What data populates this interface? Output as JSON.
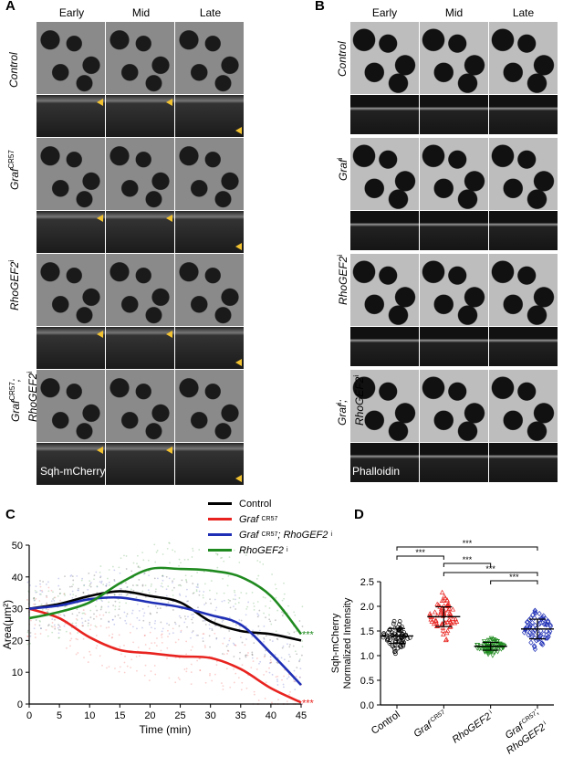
{
  "panels": {
    "A": {
      "letter": "A",
      "columns": [
        "Early",
        "Mid",
        "Late"
      ],
      "rows": [
        {
          "name": "Control",
          "sup": "",
          "italic": false
        },
        {
          "name": "Graf",
          "sup": "CR57",
          "italic": true
        },
        {
          "name": "RhoGEF2",
          "sup": "i",
          "italic": true
        },
        {
          "name": "Graf",
          "sup": "CR57",
          "line2": "RhoGEF2",
          "sup2": "i",
          "italic": true
        }
      ],
      "stain": "Sqh-mCherry"
    },
    "B": {
      "letter": "B",
      "columns": [
        "Early",
        "Mid",
        "Late"
      ],
      "rows": [
        {
          "name": "Control",
          "sup": ""
        },
        {
          "name": "Graf",
          "sup": "i"
        },
        {
          "name": "RhoGEF2",
          "sup": "i"
        },
        {
          "name": "Graf",
          "sup": "i",
          "line2": "RhoGEF2",
          "sup2": "i"
        }
      ],
      "stain": "Phalloidin"
    },
    "C": {
      "letter": "C",
      "legend": [
        {
          "label": "Control",
          "sup": "",
          "color": "#000000"
        },
        {
          "label": "Graf",
          "sup": "CR57",
          "color": "#e8231f"
        },
        {
          "label": "Graf",
          "sup": "CR57",
          "label2": "; RhoGEF2",
          "sup2": "i",
          "color": "#1f2fb5"
        },
        {
          "label": "RhoGEF2",
          "sup": "i",
          "color": "#1f8a1f"
        }
      ],
      "significance_green": "***",
      "significance_red": "***"
    },
    "D": {
      "letter": "D",
      "significance": [
        "***",
        "***",
        "***",
        "***",
        "***"
      ]
    }
  },
  "chart_data": [
    {
      "type": "line",
      "xlabel": "Time (min)",
      "ylabel": "Area(μm²)",
      "xlim": [
        0,
        45
      ],
      "ylim": [
        0,
        50
      ],
      "xticks": [
        0,
        5,
        10,
        15,
        20,
        25,
        30,
        35,
        40,
        45
      ],
      "yticks": [
        0,
        10,
        20,
        30,
        40,
        50
      ],
      "series": [
        {
          "name": "Control",
          "color": "#000000",
          "x": [
            0,
            5,
            10,
            15,
            20,
            25,
            30,
            35,
            40,
            45
          ],
          "y": [
            30,
            31.5,
            34,
            35.5,
            34,
            32,
            26,
            23,
            22,
            20
          ]
        },
        {
          "name": "Graf CR57",
          "color": "#e8231f",
          "x": [
            0,
            5,
            10,
            15,
            20,
            25,
            30,
            35,
            40,
            45
          ],
          "y": [
            30,
            27,
            21,
            17,
            16,
            15,
            14.5,
            11,
            5,
            0.5
          ]
        },
        {
          "name": "Graf CR57; RhoGEF2 i",
          "color": "#1f2fb5",
          "x": [
            0,
            5,
            10,
            15,
            20,
            25,
            30,
            35,
            40,
            45
          ],
          "y": [
            30,
            31,
            33,
            33.5,
            32,
            30.5,
            28,
            25,
            16,
            6
          ]
        },
        {
          "name": "RhoGEF2 i",
          "color": "#1f8a1f",
          "x": [
            0,
            5,
            10,
            15,
            20,
            25,
            30,
            35,
            40,
            45
          ],
          "y": [
            27,
            29,
            32,
            38,
            42.5,
            42.5,
            42,
            40,
            34,
            22
          ]
        }
      ]
    },
    {
      "type": "scatter",
      "ylabel": "Sqh-mCherry\nNormalized Intensity",
      "ylim": [
        0,
        2.5
      ],
      "yticks": [
        "0.0",
        "0.5",
        "1.0",
        "1.5",
        "2.0",
        "2.5"
      ],
      "categories": [
        {
          "label": "Control",
          "sup": "",
          "color": "#000000",
          "marker": "circle",
          "mean": 1.4,
          "sd": 0.15,
          "min": 1.0,
          "max": 1.82
        },
        {
          "label": "Graf",
          "sup": "CR57",
          "color": "#e8231f",
          "marker": "triangle-up",
          "mean": 1.79,
          "sd": 0.2,
          "min": 1.3,
          "max": 2.28
        },
        {
          "label": "RhoGEF2",
          "sup": "i",
          "color": "#1f8a1f",
          "marker": "triangle-down",
          "mean": 1.19,
          "sd": 0.08,
          "min": 1.0,
          "max": 1.38
        },
        {
          "label": "Graf",
          "sup": "CR57",
          "label2": "RhoGEF2",
          "sup2": "i",
          "color": "#1f2fb5",
          "marker": "diamond",
          "mean": 1.54,
          "sd": 0.2,
          "min": 1.1,
          "max": 2.05
        }
      ]
    }
  ]
}
